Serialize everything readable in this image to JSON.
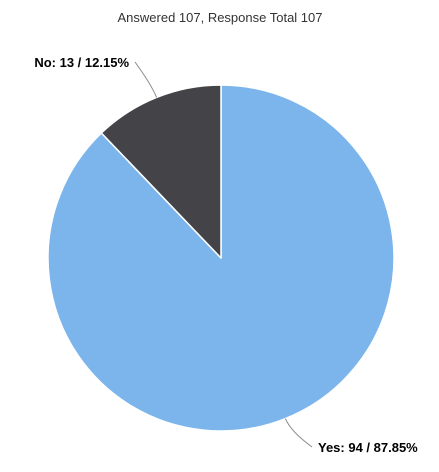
{
  "chart_data": {
    "type": "pie",
    "title": "Answered 107, Response Total 107",
    "slices": [
      {
        "name": "Yes",
        "value": 94,
        "percent": 87.85,
        "label": "Yes: 94 / 87.85%",
        "color": "#7cb5ec"
      },
      {
        "name": "No",
        "value": 13,
        "percent": 12.15,
        "label": "No: 13 / 12.15%",
        "color": "#434348"
      }
    ],
    "slice_border_color": "#ffffff",
    "connector_color": "#8a8a8a"
  }
}
